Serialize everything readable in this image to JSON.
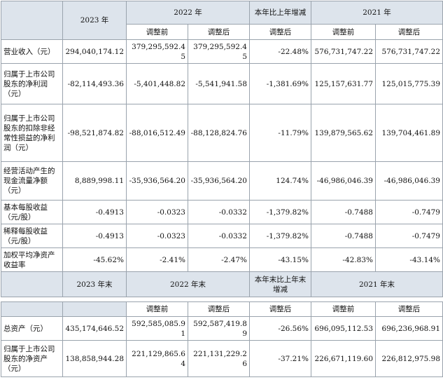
{
  "header1": {
    "y2023": "2023 年",
    "y2022": "2022 年",
    "yoy": "本年比上年增减",
    "y2021": "2021 年",
    "before": "调整前",
    "after": "调整后",
    "yoy_after": "调整后"
  },
  "rows1": [
    {
      "label": "营业收入（元）",
      "v2023": "294,040,174.12",
      "b2022": "379,295,592.45",
      "a2022": "379,295,592.45",
      "yoy": "-22.48%",
      "b2021": "576,731,747.22",
      "a2021": "576,731,747.22"
    },
    {
      "label": "归属于上市公司股东的净利润（元）",
      "v2023": "-82,114,493.36",
      "b2022": "-5,401,448.82",
      "a2022": "-5,541,941.58",
      "yoy": "-1,381.69%",
      "b2021": "125,157,631.77",
      "a2021": "125,015,775.39"
    },
    {
      "label": "归属于上市公司股东的扣除非经常性损益的净利润（元）",
      "v2023": "-98,521,874.82",
      "b2022": "-88,016,512.49",
      "a2022": "-88,128,824.76",
      "yoy": "-11.79%",
      "b2021": "139,879,565.62",
      "a2021": "139,704,461.89"
    },
    {
      "label": "经营活动产生的现金流量净额（元）",
      "v2023": "8,889,998.11",
      "b2022": "-35,936,564.20",
      "a2022": "-35,936,564.20",
      "yoy": "124.74%",
      "b2021": "-46,986,046.39",
      "a2021": "-46,986,046.39"
    },
    {
      "label": "基本每股收益（元/股）",
      "v2023": "-0.4913",
      "b2022": "-0.0323",
      "a2022": "-0.0332",
      "yoy": "-1,379.82%",
      "b2021": "-0.7488",
      "a2021": "-0.7479"
    },
    {
      "label": "稀释每股收益（元/股）",
      "v2023": "-0.4913",
      "b2022": "-0.0323",
      "a2022": "-0.0332",
      "yoy": "-1,379.82%",
      "b2021": "-0.7488",
      "a2021": "-0.7479"
    },
    {
      "label": "加权平均净资产收益率",
      "v2023": "-45.62%",
      "b2022": "-2.41%",
      "a2022": "-2.47%",
      "yoy": "-43.15%",
      "b2021": "-42.83%",
      "a2021": "-43.14%"
    }
  ],
  "header2": {
    "y2023": "2023 年末",
    "y2022": "2022 年末",
    "yoy": "本年末比上年末增减",
    "y2021": "2021 年末",
    "before": "调整前",
    "after": "调整后",
    "yoy_after": "调整后"
  },
  "rows2": [
    {
      "label": "总资产（元）",
      "v2023": "435,174,646.52",
      "b2022": "592,585,085.91",
      "a2022": "592,587,419.89",
      "yoy": "-26.56%",
      "b2021": "696,095,112.53",
      "a2021": "696,236,968.91"
    },
    {
      "label": "归属于上市公司股东的净资产（元）",
      "v2023": "138,858,944.28",
      "b2022": "221,129,865.64",
      "a2022": "221,131,229.26",
      "yoy": "-37.21%",
      "b2021": "226,671,119.60",
      "a2021": "226,812,975.98"
    }
  ]
}
